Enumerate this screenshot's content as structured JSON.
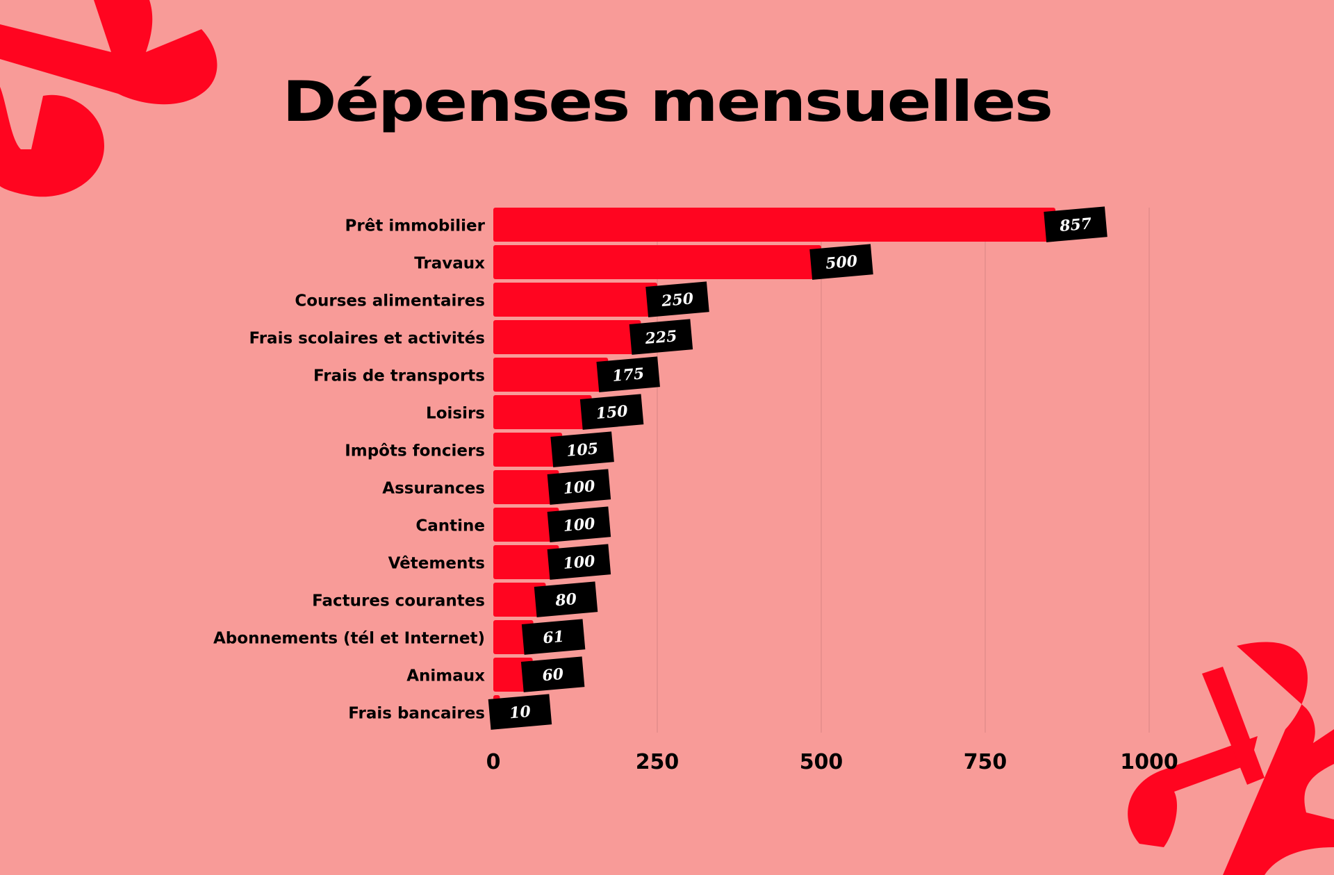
{
  "chart_data": {
    "type": "bar",
    "orientation": "horizontal",
    "title": "Dépenses mensuelles",
    "categories": [
      "Prêt immobilier",
      "Travaux",
      "Courses alimentaires",
      "Frais scolaires et activités",
      "Frais de transports",
      "Loisirs",
      "Impôts fonciers",
      "Assurances",
      "Cantine",
      "Vêtements",
      "Factures courantes",
      "Abonnements (tél et Internet)",
      "Animaux",
      "Frais bancaires"
    ],
    "values": [
      857,
      500,
      250,
      225,
      175,
      150,
      105,
      100,
      100,
      100,
      80,
      61,
      60,
      10
    ],
    "xlim": [
      0,
      1000
    ],
    "xticks": [
      "0",
      "250",
      "500",
      "750",
      "1000"
    ],
    "grid": true,
    "xlabel": "",
    "ylabel": "",
    "colors": {
      "background": "#F89B98",
      "bar": "#FF0520",
      "label_bg": "#000000",
      "label_text": "#FFFFFF",
      "grid": "#D98683"
    }
  }
}
